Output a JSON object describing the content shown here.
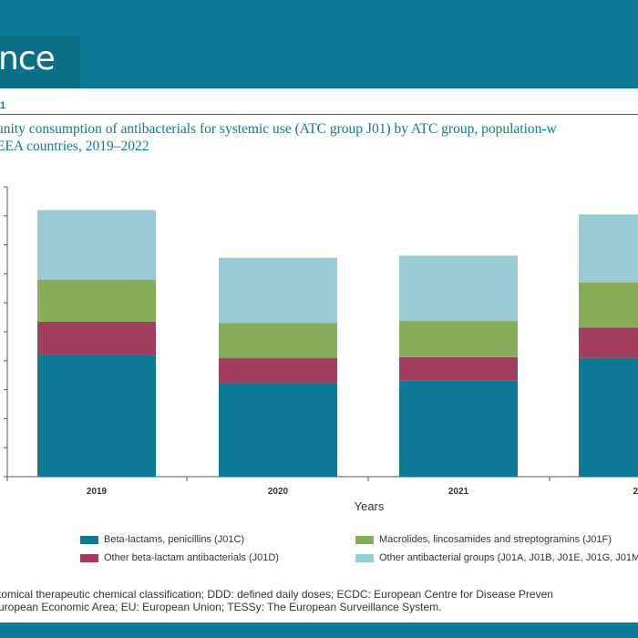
{
  "header": {
    "title": "nce"
  },
  "figure": {
    "label": "1",
    "caption_line1": "unity consumption of antibacterials for systemic use (ATC group J01) by ATC group, population-w",
    "caption_line2": "EEA countries, 2019–2022"
  },
  "chart_data": {
    "type": "bar",
    "stacked": true,
    "xlabel": "Years",
    "categories": [
      "2019",
      "2020",
      "2021",
      "20"
    ],
    "ylim": [
      0,
      20
    ],
    "grid": false,
    "legend_placement": "bottom",
    "series": [
      {
        "name": "Beta-lactams, penicillins (J01C)",
        "color": "#0e7a95",
        "values": [
          8.4,
          6.45,
          6.65,
          8.2
        ]
      },
      {
        "name": "Other beta-lactam antibacterials (J01D)",
        "color": "#a23f5f",
        "values": [
          2.3,
          1.75,
          1.6,
          2.1
        ]
      },
      {
        "name": "Macrolides, lincosamides and streptogramins (J01F)",
        "color": "#86ad5a",
        "values": [
          2.9,
          2.4,
          2.5,
          3.1
        ]
      },
      {
        "name": "Other antibacterial groups (J01A, J01B, J01E, J01G, J01M",
        "color": "#99cbd5",
        "values": [
          4.8,
          4.5,
          4.5,
          4.7
        ]
      }
    ]
  },
  "legend": [
    {
      "label": "Beta-lactams, penicillins (J01C)",
      "color": "#0e7a95"
    },
    {
      "label": "Macrolides, lincosamides and streptogramins (J01F)",
      "color": "#86ad5a"
    },
    {
      "label": "Other beta-lactam antibacterials (J01D)",
      "color": "#a23f5f"
    },
    {
      "label": "Other antibacterial groups  (J01A, J01B, J01E, J01G, J01M",
      "color": "#99cbd5"
    }
  ],
  "footnote": {
    "line1": "tomical therapeutic chemical classification; DDD: defined daily doses; ECDC: European Centre for Disease Preven",
    "line2": "uropean Economic Area; EU: European Union; TESSy: The European Surveillance System."
  }
}
